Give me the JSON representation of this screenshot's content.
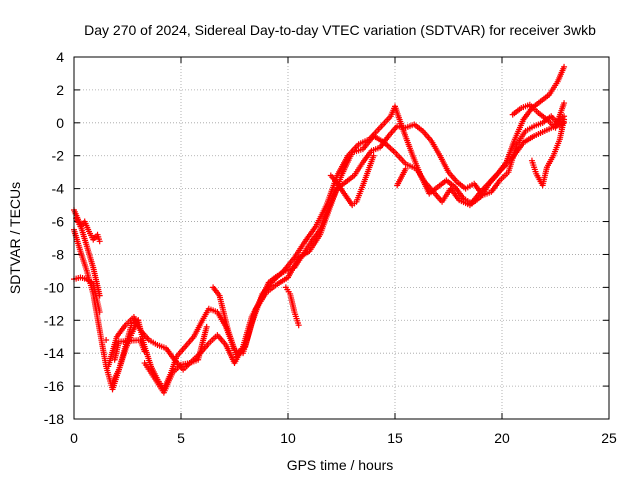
{
  "chart_data": {
    "type": "scatter",
    "title": "Day 270 of 2024, Sidereal Day-to-day VTEC variation (SDTVAR) for receiver 3wkb",
    "xlabel": "GPS time / hours",
    "ylabel": "SDTVAR / TECUs",
    "xlim": [
      0,
      25
    ],
    "ylim": [
      -18,
      4
    ],
    "xticks": [
      0,
      5,
      10,
      15,
      20,
      25
    ],
    "yticks": [
      -18,
      -16,
      -14,
      -12,
      -10,
      -8,
      -6,
      -4,
      -2,
      0,
      2,
      4
    ],
    "grid": true,
    "marker": "+",
    "color": "#ff0000",
    "series": [
      {
        "name": "trace-a",
        "points": [
          [
            0.0,
            -5.3
          ],
          [
            0.3,
            -6.2
          ],
          [
            0.6,
            -7.5
          ],
          [
            0.9,
            -8.8
          ],
          [
            1.2,
            -10.5
          ],
          [
            1.5,
            -13.2
          ],
          [
            1.8,
            -15.8
          ],
          [
            2.1,
            -15.0
          ],
          [
            2.4,
            -13.6
          ],
          [
            2.7,
            -12.2
          ],
          [
            3.0,
            -12.0
          ],
          [
            3.3,
            -13.6
          ],
          [
            3.6,
            -14.8
          ],
          [
            3.9,
            -15.6
          ],
          [
            4.2,
            -16.2
          ],
          [
            4.5,
            -15.3
          ],
          [
            4.8,
            -14.2
          ],
          [
            5.2,
            -13.6
          ],
          [
            5.6,
            -13.0
          ],
          [
            6.0,
            -12.0
          ],
          [
            6.3,
            -11.3
          ],
          [
            6.7,
            -11.5
          ],
          [
            7.1,
            -12.4
          ],
          [
            7.5,
            -13.8
          ],
          [
            7.9,
            -14.0
          ],
          [
            8.3,
            -12.2
          ],
          [
            8.8,
            -10.4
          ],
          [
            9.3,
            -9.6
          ],
          [
            9.8,
            -9.0
          ],
          [
            10.3,
            -8.2
          ],
          [
            10.8,
            -7.2
          ],
          [
            11.3,
            -6.3
          ],
          [
            11.8,
            -5.0
          ],
          [
            12.3,
            -3.2
          ],
          [
            12.8,
            -2.0
          ],
          [
            13.3,
            -1.3
          ],
          [
            13.8,
            -1.0
          ],
          [
            14.3,
            -0.3
          ],
          [
            14.8,
            0.4
          ],
          [
            15.0,
            1.0
          ],
          [
            15.4,
            -0.5
          ],
          [
            15.8,
            -1.9
          ],
          [
            16.2,
            -3.2
          ],
          [
            16.6,
            -4.3
          ],
          [
            17.0,
            -3.9
          ],
          [
            17.4,
            -3.5
          ],
          [
            17.8,
            -3.9
          ],
          [
            18.2,
            -4.6
          ],
          [
            18.6,
            -4.9
          ],
          [
            19.0,
            -4.5
          ],
          [
            19.4,
            -3.7
          ],
          [
            19.8,
            -3.1
          ],
          [
            20.2,
            -2.4
          ],
          [
            20.6,
            -1.0
          ],
          [
            21.0,
            0.2
          ],
          [
            21.4,
            0.9
          ],
          [
            21.8,
            1.3
          ],
          [
            22.2,
            1.7
          ],
          [
            22.6,
            2.5
          ],
          [
            22.9,
            3.4
          ]
        ]
      },
      {
        "name": "trace-b",
        "points": [
          [
            0.0,
            -6.5
          ],
          [
            0.3,
            -7.8
          ],
          [
            0.6,
            -9.0
          ],
          [
            0.9,
            -10.4
          ],
          [
            1.2,
            -12.6
          ],
          [
            1.5,
            -14.8
          ],
          [
            1.8,
            -16.2
          ],
          [
            2.1,
            -15.0
          ],
          [
            2.4,
            -13.8
          ],
          [
            2.7,
            -12.8
          ],
          [
            3.0,
            -12.0
          ],
          [
            3.3,
            -14.6
          ],
          [
            3.6,
            -15.2
          ],
          [
            3.9,
            -15.8
          ],
          [
            4.2,
            -16.4
          ],
          [
            4.6,
            -15.2
          ],
          [
            5.0,
            -14.7
          ],
          [
            5.4,
            -14.6
          ],
          [
            5.8,
            -14.4
          ],
          [
            6.2,
            -12.4
          ],
          [
            6.5,
            -10.0
          ],
          [
            6.8,
            -10.5
          ],
          [
            7.2,
            -12.6
          ],
          [
            7.6,
            -14.2
          ],
          [
            8.0,
            -13.6
          ],
          [
            8.5,
            -11.3
          ],
          [
            9.0,
            -10.3
          ],
          [
            9.5,
            -9.8
          ],
          [
            10.0,
            -9.4
          ],
          [
            10.5,
            -8.2
          ],
          [
            11.0,
            -7.8
          ],
          [
            11.5,
            -6.8
          ],
          [
            12.0,
            -5.0
          ],
          [
            12.5,
            -3.2
          ],
          [
            13.0,
            -1.8
          ],
          [
            13.5,
            -1.6
          ],
          [
            14.0,
            -0.8
          ],
          [
            14.5,
            -1.2
          ],
          [
            15.0,
            -1.8
          ],
          [
            15.5,
            -2.5
          ],
          [
            16.0,
            -2.8
          ],
          [
            16.4,
            -3.6
          ],
          [
            16.8,
            -4.2
          ],
          [
            17.2,
            -4.8
          ],
          [
            17.6,
            -4.0
          ],
          [
            18.0,
            -4.7
          ],
          [
            18.5,
            -5.0
          ],
          [
            19.0,
            -4.2
          ],
          [
            19.5,
            -3.5
          ],
          [
            20.0,
            -2.8
          ],
          [
            20.5,
            -2.1
          ],
          [
            21.0,
            -1.2
          ],
          [
            21.5,
            -0.8
          ],
          [
            22.0,
            -0.5
          ],
          [
            22.5,
            -0.2
          ],
          [
            22.9,
            0.4
          ]
        ]
      },
      {
        "name": "trace-c",
        "points": [
          [
            0.0,
            -9.5
          ],
          [
            0.3,
            -9.4
          ],
          [
            0.6,
            -9.5
          ],
          [
            0.9,
            -9.8
          ],
          [
            1.2,
            -11.5
          ],
          [
            1.6,
            -14.8
          ],
          [
            2.0,
            -13.0
          ],
          [
            2.4,
            -12.3
          ],
          [
            2.8,
            -11.8
          ],
          [
            3.1,
            -12.6
          ],
          [
            3.5,
            -13.2
          ],
          [
            3.9,
            -13.5
          ],
          [
            4.3,
            -13.7
          ],
          [
            4.7,
            -14.4
          ],
          [
            5.1,
            -15.0
          ],
          [
            5.5,
            -14.5
          ],
          [
            5.9,
            -14.0
          ],
          [
            6.3,
            -13.4
          ],
          [
            6.7,
            -12.9
          ],
          [
            7.1,
            -13.5
          ],
          [
            7.5,
            -14.6
          ],
          [
            7.9,
            -13.6
          ],
          [
            8.3,
            -11.8
          ],
          [
            8.7,
            -10.8
          ],
          [
            9.1,
            -9.7
          ],
          [
            9.5,
            -9.3
          ],
          [
            9.9,
            -9.0
          ],
          [
            10.3,
            -8.8
          ],
          [
            10.7,
            -8.0
          ],
          [
            11.1,
            -7.2
          ],
          [
            11.5,
            -6.5
          ],
          [
            11.9,
            -5.2
          ],
          [
            12.3,
            -4.0
          ],
          [
            12.7,
            -3.6
          ],
          [
            13.1,
            -3.2
          ],
          [
            13.5,
            -2.4
          ],
          [
            13.9,
            -1.7
          ],
          [
            14.3,
            -1.5
          ],
          [
            14.7,
            -0.8
          ],
          [
            15.1,
            -0.2
          ],
          [
            15.5,
            -0.3
          ],
          [
            15.9,
            -0.1
          ],
          [
            16.3,
            -0.5
          ],
          [
            16.7,
            -1.1
          ],
          [
            17.1,
            -2.0
          ],
          [
            17.5,
            -3.0
          ],
          [
            17.9,
            -3.6
          ],
          [
            18.3,
            -4.0
          ],
          [
            18.7,
            -3.7
          ],
          [
            19.1,
            -4.4
          ],
          [
            19.5,
            -4.2
          ],
          [
            19.9,
            -3.5
          ],
          [
            20.3,
            -3.0
          ],
          [
            20.7,
            -1.3
          ],
          [
            21.1,
            -0.5
          ],
          [
            21.5,
            -0.2
          ],
          [
            21.9,
            0.0
          ],
          [
            22.3,
            0.4
          ],
          [
            22.7,
            -0.2
          ],
          [
            22.9,
            0.0
          ]
        ]
      },
      {
        "name": "trace-d",
        "points": [
          [
            20.5,
            0.5
          ],
          [
            20.9,
            0.9
          ],
          [
            21.3,
            1.1
          ],
          [
            21.7,
            0.6
          ],
          [
            22.1,
            0.2
          ],
          [
            22.5,
            -0.3
          ],
          [
            22.9,
            1.2
          ],
          [
            21.4,
            -2.3
          ],
          [
            21.6,
            -3.1
          ],
          [
            21.9,
            -3.8
          ],
          [
            22.1,
            -2.7
          ],
          [
            22.4,
            -2.0
          ],
          [
            22.7,
            -1.0
          ],
          [
            22.9,
            0.2
          ]
        ]
      },
      {
        "name": "trace-e",
        "points": [
          [
            0.1,
            -5.8
          ],
          [
            0.3,
            -6.3
          ],
          [
            0.5,
            -6.0
          ],
          [
            0.7,
            -6.6
          ],
          [
            0.9,
            -7.1
          ],
          [
            1.1,
            -6.8
          ],
          [
            1.2,
            -7.2
          ],
          [
            12.0,
            -3.2
          ],
          [
            12.2,
            -3.5
          ],
          [
            13.0,
            -5.0
          ],
          [
            13.2,
            -4.8
          ],
          [
            13.5,
            -3.8
          ],
          [
            14.0,
            -2.0
          ],
          [
            9.9,
            -10.0
          ],
          [
            10.1,
            -10.4
          ],
          [
            10.3,
            -11.5
          ],
          [
            10.5,
            -12.3
          ],
          [
            1.9,
            -14.4
          ],
          [
            2.1,
            -13.3
          ],
          [
            3.1,
            -13.2
          ],
          [
            3.3,
            -13.9
          ],
          [
            15.1,
            -3.8
          ],
          [
            15.5,
            -2.8
          ]
        ]
      }
    ]
  }
}
